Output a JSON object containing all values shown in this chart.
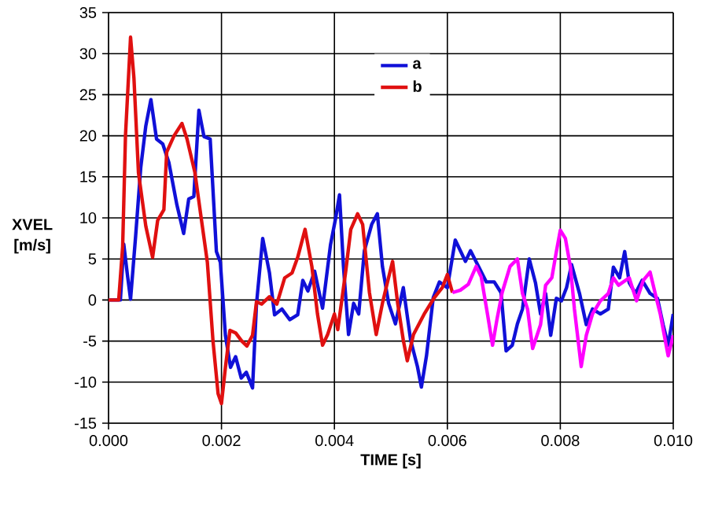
{
  "chart_data": {
    "type": "line",
    "xlabel": "TIME [s]",
    "ylabel": "XVEL [m/s]",
    "xlim": [
      0,
      0.01
    ],
    "ylim": [
      -15,
      35
    ],
    "xticks": [
      {
        "value": 0,
        "label": "0.000"
      },
      {
        "value": 0.002,
        "label": "0.002"
      },
      {
        "value": 0.004,
        "label": "0.004"
      },
      {
        "value": 0.006,
        "label": "0.006"
      },
      {
        "value": 0.008,
        "label": "0.008"
      },
      {
        "value": 0.01,
        "label": "0.010"
      }
    ],
    "yticks": [
      -15,
      -10,
      -5,
      0,
      5,
      10,
      15,
      20,
      25,
      30,
      35
    ],
    "grid": true,
    "legend": "top",
    "marker": "none",
    "line_style": "solid",
    "series": [
      {
        "name": "a",
        "color": "#1010d8",
        "x": [
          0,
          0.00021,
          0.00027,
          0.00033,
          0.00039,
          0.00048,
          0.00057,
          0.00066,
          0.00075,
          0.00085,
          0.00096,
          0.00107,
          0.00121,
          0.00133,
          0.00142,
          0.00151,
          0.0016,
          0.00169,
          0.0018,
          0.00191,
          0.00198,
          0.00207,
          0.00216,
          0.00225,
          0.00235,
          0.00244,
          0.00255,
          0.00262,
          0.00273,
          0.00285,
          0.00294,
          0.00307,
          0.00321,
          0.00335,
          0.00344,
          0.00353,
          0.00365,
          0.00379,
          0.00393,
          0.00402,
          0.00409,
          0.00416,
          0.00425,
          0.00434,
          0.00443,
          0.00453,
          0.00466,
          0.00476,
          0.00485,
          0.00496,
          0.00508,
          0.00522,
          0.00535,
          0.00547,
          0.00554,
          0.00563,
          0.00575,
          0.00586,
          0.006,
          0.00614,
          0.00623,
          0.00632,
          0.00641,
          0.00655,
          0.00669,
          0.00683,
          0.00695,
          0.00704,
          0.00715,
          0.00724,
          0.00733,
          0.00745,
          0.00756,
          0.00765,
          0.00774,
          0.00783,
          0.00793,
          0.00802,
          0.00811,
          0.0082,
          0.00834,
          0.00846,
          0.00857,
          0.00871,
          0.00885,
          0.00894,
          0.00905,
          0.00914,
          0.00922,
          0.00933,
          0.00945,
          0.00959,
          0.00972,
          0.00982,
          0.00991,
          0.01
        ],
        "values": [
          0,
          0,
          6.8,
          3.3,
          0.1,
          7.8,
          16.1,
          21.2,
          24.4,
          19.6,
          19,
          16.7,
          11.6,
          8.1,
          12.3,
          12.6,
          23.1,
          19.9,
          19.6,
          5.9,
          4.6,
          -4.3,
          -8.2,
          -6.9,
          -9.5,
          -8.8,
          -10.7,
          -0.5,
          7.5,
          3.3,
          -1.8,
          -1.1,
          -2.4,
          -1.8,
          2.4,
          1.1,
          3.5,
          -1,
          6.7,
          9.9,
          12.8,
          4.1,
          -4.2,
          -0.4,
          -1.7,
          6,
          9.2,
          10.5,
          4.1,
          -0.4,
          -2.9,
          1.5,
          -4.9,
          -8.1,
          -10.6,
          -6.8,
          0.3,
          2.2,
          1.5,
          7.3,
          6,
          4.7,
          6,
          4.1,
          2.2,
          2.2,
          0.9,
          -6.2,
          -5.5,
          -2.9,
          -1.1,
          5,
          2.1,
          -1.7,
          0.8,
          -4.3,
          0.2,
          -0.1,
          1.5,
          4.3,
          0.8,
          -3,
          -1.1,
          -1.7,
          -1.1,
          4,
          2.7,
          5.9,
          2.1,
          0.8,
          2.4,
          0.8,
          0.2,
          -3,
          -5.5,
          -1.7
        ]
      },
      {
        "name": "b",
        "color": "#e01010",
        "x": [
          0,
          0.00018,
          0.00025,
          0.0003,
          0.00039,
          0.00045,
          0.00053,
          0.00066,
          0.00078,
          0.00087,
          0.00098,
          0.00103,
          0.00116,
          0.0013,
          0.00139,
          0.00153,
          0.00162,
          0.00175,
          0.00185,
          0.00194,
          0.002,
          0.00207,
          0.00215,
          0.00225,
          0.00236,
          0.00245,
          0.00255,
          0.00262,
          0.00271,
          0.00285,
          0.00298,
          0.00312,
          0.00325,
          0.00335,
          0.00348,
          0.0036,
          0.0037,
          0.00379,
          0.00388,
          0.004,
          0.00406,
          0.0042,
          0.00429,
          0.00441,
          0.0045,
          0.00462,
          0.00474,
          0.00485,
          0.00494,
          0.00503,
          0.00512,
          0.00522,
          0.00529,
          0.0054,
          0.00559,
          0.00577,
          0.00591,
          0.006,
          0.00609
        ],
        "values": [
          0,
          0,
          6.5,
          20,
          32,
          27,
          15.5,
          9,
          5.2,
          9.7,
          11,
          18,
          20,
          21.5,
          19.6,
          15.5,
          11,
          4.6,
          -5,
          -11.4,
          -12.6,
          -8.2,
          -3.7,
          -4,
          -5,
          -5.6,
          -4.3,
          -0.2,
          -0.5,
          0.4,
          -0.5,
          2.7,
          3.3,
          5.2,
          8.6,
          4.1,
          -1.7,
          -5.5,
          -4.2,
          -1.7,
          -3.6,
          3.5,
          8.6,
          10.5,
          9.2,
          0.9,
          -4.2,
          -0.4,
          2.2,
          4.7,
          -0.4,
          -4.9,
          -7.4,
          -4.2,
          -1.7,
          0.3,
          1.5,
          3.1,
          0.9
        ]
      },
      {
        "color": "#ff00ff",
        "x": [
          0.00609,
          0.00623,
          0.00637,
          0.00651,
          0.0066,
          0.00671,
          0.0068,
          0.00688,
          0.00697,
          0.00711,
          0.00724,
          0.00733,
          0.00742,
          0.00751,
          0.00765,
          0.00774,
          0.00785,
          0.00793,
          0.008,
          0.00809,
          0.00818,
          0.00825,
          0.00837,
          0.00846,
          0.00857,
          0.00871,
          0.00885,
          0.00894,
          0.00903,
          0.00922,
          0.00935,
          0.00947,
          0.00959,
          0.00968,
          0.00977,
          0.00991,
          0.01
        ],
        "values": [
          0.9,
          1.2,
          1.9,
          4.1,
          2.8,
          -1.7,
          -5.5,
          -2.3,
          0.9,
          4.1,
          5,
          0.8,
          -1.1,
          -5.9,
          -3,
          1.8,
          2.7,
          5.9,
          8.5,
          7.5,
          4,
          -1.1,
          -8.1,
          -4.3,
          -1.7,
          -0.1,
          0.8,
          2.7,
          1.8,
          2.7,
          -0.1,
          2.4,
          3.4,
          0.8,
          -1.7,
          -6.8,
          -4.3
        ]
      }
    ]
  }
}
